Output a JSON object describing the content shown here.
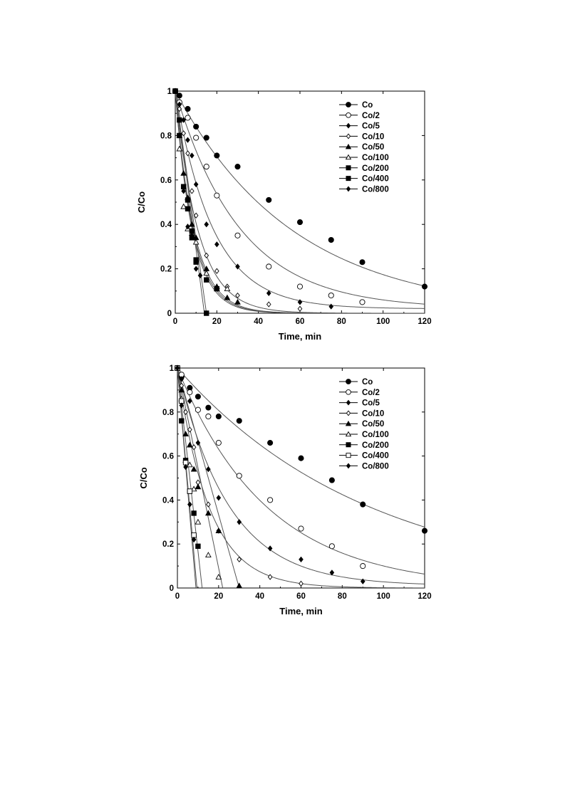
{
  "chart_data": [
    {
      "type": "scatter",
      "xlabel": "Time, min",
      "ylabel": "C/Co",
      "xlim": [
        0,
        120
      ],
      "ylim": [
        0,
        1
      ],
      "xticks": [
        "0",
        "20",
        "40",
        "60",
        "80",
        "100",
        "120"
      ],
      "yticks": [
        "0",
        "0.2",
        "0.4",
        "0.6",
        "0.8",
        "1"
      ],
      "legend_position": "top-right",
      "series": [
        {
          "name": "Co",
          "marker": "circle-filled",
          "x": [
            0,
            2,
            6,
            10,
            15,
            20,
            30,
            45,
            60,
            75,
            90,
            120
          ],
          "y": [
            1,
            0.98,
            0.92,
            0.84,
            0.79,
            0.71,
            0.66,
            0.51,
            0.41,
            0.33,
            0.23,
            0.12
          ],
          "k": 0.0175,
          "c_inf": 0
        },
        {
          "name": "Co/2",
          "marker": "circle-open",
          "x": [
            0,
            2,
            6,
            10,
            15,
            20,
            30,
            45,
            60,
            75,
            90
          ],
          "y": [
            1,
            0.95,
            0.88,
            0.79,
            0.66,
            0.53,
            0.35,
            0.21,
            0.12,
            0.08,
            0.05
          ],
          "k": 0.032,
          "c_inf": 0.02
        },
        {
          "name": "Co/5",
          "marker": "diamond-filled",
          "x": [
            0,
            2,
            4,
            6,
            8,
            10,
            15,
            20,
            30,
            45,
            60,
            75
          ],
          "y": [
            1,
            0.94,
            0.87,
            0.78,
            0.71,
            0.58,
            0.4,
            0.31,
            0.21,
            0.09,
            0.05,
            0.03
          ],
          "k": 0.055,
          "c_inf": 0.02
        },
        {
          "name": "Co/10",
          "marker": "diamond-open",
          "x": [
            0,
            2,
            4,
            6,
            8,
            10,
            15,
            20,
            25,
            30,
            45,
            60
          ],
          "y": [
            1,
            0.92,
            0.81,
            0.72,
            0.55,
            0.44,
            0.26,
            0.19,
            0.12,
            0.08,
            0.04,
            0.02
          ],
          "k": 0.09,
          "c_inf": 0
        },
        {
          "name": "Co/50",
          "marker": "triangle-filled",
          "x": [
            0,
            2,
            4,
            6,
            8,
            10,
            15,
            20,
            25,
            30
          ],
          "y": [
            1,
            0.8,
            0.63,
            0.52,
            0.4,
            0.34,
            0.2,
            0.12,
            0.07,
            0.05
          ],
          "k": 0.11,
          "c_inf": 0
        },
        {
          "name": "Co/100",
          "marker": "triangle-open",
          "x": [
            0,
            2,
            4,
            6,
            8,
            10,
            15,
            20,
            25
          ],
          "y": [
            1,
            0.74,
            0.48,
            0.38,
            0.36,
            0.32,
            0.18,
            0.11,
            0.11
          ],
          "k": 0.115,
          "c_inf": 0
        },
        {
          "name": "Co/200",
          "marker": "square-filled",
          "x": [
            0,
            2,
            4,
            6,
            8,
            10,
            15,
            20
          ],
          "y": [
            1,
            0.8,
            0.57,
            0.47,
            0.34,
            0.23,
            0.15,
            0.11
          ],
          "k": 0.12,
          "c_inf": 0
        },
        {
          "name": "Co/400",
          "marker": "square-filled",
          "x": [
            0,
            2,
            4,
            6,
            8,
            10,
            15
          ],
          "y": [
            1,
            0.87,
            0.57,
            0.51,
            0.37,
            0.24,
            0.0
          ],
          "line": "linear-to-zero",
          "t0": 15
        },
        {
          "name": "Co/800",
          "marker": "diamond-filled",
          "x": [
            0,
            2,
            4,
            6,
            8,
            10,
            12
          ],
          "y": [
            1,
            0.87,
            0.55,
            0.39,
            0.35,
            0.2,
            0.17
          ],
          "line": "linear-to-zero",
          "t0": 14
        }
      ]
    },
    {
      "type": "scatter",
      "xlabel": "Time, min",
      "ylabel": "C/Co",
      "xlim": [
        0,
        120
      ],
      "ylim": [
        0,
        1
      ],
      "xticks": [
        "0",
        "20",
        "40",
        "60",
        "80",
        "100",
        "120"
      ],
      "yticks": [
        "0",
        "0.2",
        "0.4",
        "0.6",
        "0.8",
        "1"
      ],
      "legend_position": "top-right",
      "series": [
        {
          "name": "Co",
          "marker": "circle-filled",
          "x": [
            0,
            2,
            6,
            10,
            15,
            20,
            30,
            45,
            60,
            75,
            90,
            120
          ],
          "y": [
            1,
            0.96,
            0.91,
            0.87,
            0.82,
            0.78,
            0.76,
            0.66,
            0.59,
            0.49,
            0.38,
            0.26
          ],
          "k": 0.0107,
          "c_inf": 0
        },
        {
          "name": "Co/2",
          "marker": "circle-open",
          "x": [
            0,
            2,
            6,
            10,
            15,
            20,
            30,
            45,
            60,
            75,
            90
          ],
          "y": [
            1,
            0.97,
            0.89,
            0.81,
            0.78,
            0.66,
            0.51,
            0.4,
            0.27,
            0.19,
            0.1
          ],
          "k": 0.023,
          "c_inf": 0
        },
        {
          "name": "Co/5",
          "marker": "diamond-filled",
          "x": [
            0,
            2,
            6,
            10,
            15,
            20,
            30,
            45,
            60,
            75,
            90
          ],
          "y": [
            1,
            0.95,
            0.85,
            0.66,
            0.54,
            0.41,
            0.3,
            0.18,
            0.13,
            0.07,
            0.03
          ],
          "k": 0.04,
          "c_inf": 0.01
        },
        {
          "name": "Co/10",
          "marker": "diamond-open",
          "x": [
            0,
            2,
            4,
            6,
            8,
            10,
            15,
            20,
            30,
            45,
            60
          ],
          "y": [
            1,
            0.92,
            0.8,
            0.72,
            0.64,
            0.48,
            0.38,
            0.26,
            0.13,
            0.05,
            0.02
          ],
          "k": 0.065,
          "c_inf": 0
        },
        {
          "name": "Co/50",
          "marker": "triangle-filled",
          "x": [
            0,
            2,
            4,
            6,
            8,
            10,
            15,
            20,
            30
          ],
          "y": [
            1,
            0.9,
            0.7,
            0.65,
            0.54,
            0.46,
            0.34,
            0.26,
            0.01
          ],
          "line": "linear-to-zero",
          "t0": 30
        },
        {
          "name": "Co/100",
          "marker": "triangle-open",
          "x": [
            0,
            2,
            4,
            6,
            8,
            10,
            15,
            20
          ],
          "y": [
            1,
            0.86,
            0.58,
            0.56,
            0.45,
            0.3,
            0.15,
            0.05
          ],
          "line": "linear-to-zero",
          "t0": 22
        },
        {
          "name": "Co/200",
          "marker": "square-filled",
          "x": [
            0,
            2,
            4,
            6,
            8,
            10
          ],
          "y": [
            1,
            0.76,
            0.58,
            0.44,
            0.34,
            0.19
          ],
          "line": "linear-to-zero",
          "t0": 12
        },
        {
          "name": "Co/400",
          "marker": "square-open",
          "x": [
            0,
            2,
            4,
            6,
            8
          ],
          "y": [
            1,
            0.85,
            0.57,
            0.44,
            0.24
          ],
          "line": "linear-to-zero",
          "t0": 9.5
        },
        {
          "name": "Co/800",
          "marker": "diamond-filled",
          "x": [
            0,
            2,
            4,
            6,
            8
          ],
          "y": [
            1,
            0.83,
            0.55,
            0.38,
            0.22
          ],
          "line": "linear-to-zero",
          "t0": 9
        }
      ]
    }
  ]
}
